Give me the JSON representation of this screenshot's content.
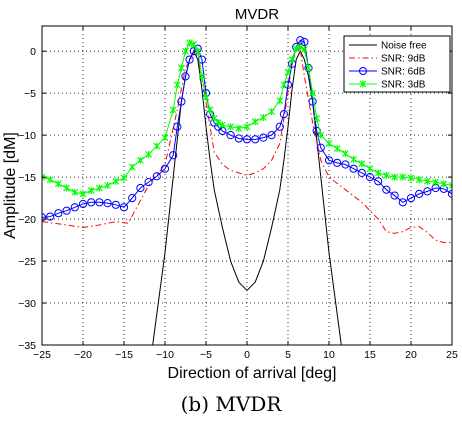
{
  "chart_data": {
    "type": "line",
    "title": "MVDR",
    "xlabel": "Direction of arrival [deg]",
    "ylabel": "Amplitude [dM]",
    "xlim": [
      -25,
      25
    ],
    "ylim": [
      -35,
      3
    ],
    "xticks": [
      -25,
      -20,
      -15,
      -10,
      -5,
      0,
      5,
      10,
      15,
      20,
      25
    ],
    "yticks": [
      0,
      -5,
      -10,
      -15,
      -20,
      -25,
      -30,
      -35
    ],
    "xtick_labels": [
      "−25",
      "−20",
      "−15",
      "−10",
      "−5",
      "0",
      "5",
      "10",
      "15",
      "20",
      "25"
    ],
    "ytick_labels": [
      "0",
      "−5",
      "−10",
      "−15",
      "−20",
      "−25",
      "−30",
      "−35"
    ],
    "grid": true,
    "legend_position": "top-right",
    "series": [
      {
        "name": "Noise free",
        "color": "#000000",
        "style": "solid",
        "marker": "none",
        "x": [
          -11.5,
          -10,
          -9,
          -8,
          -7.5,
          -7,
          -6.5,
          -6,
          -5.5,
          -5,
          -4.5,
          -4,
          -3,
          -2,
          -1,
          0,
          1,
          2,
          3,
          4,
          4.5,
          5,
          5.5,
          6,
          6.5,
          7,
          7.5,
          8,
          9,
          10,
          11.5
        ],
        "y": [
          -35,
          -24,
          -15,
          -6,
          -3,
          -1,
          0,
          -1,
          -4.5,
          -9,
          -13,
          -16.5,
          -21,
          -25,
          -27.5,
          -28.5,
          -27.5,
          -25,
          -21,
          -16.5,
          -13,
          -9,
          -4.5,
          -1,
          0,
          -1,
          -3,
          -6,
          -15,
          -24,
          -35
        ]
      },
      {
        "name": "SNR: 9dB",
        "color": "#ff0000",
        "style": "dashdot",
        "marker": "none",
        "x": [
          -25,
          -22,
          -20,
          -18,
          -16,
          -14.5,
          -12,
          -10,
          -8.5,
          -7.5,
          -6.5,
          -6,
          -5,
          -4,
          -3,
          -2,
          -1,
          0,
          1,
          2,
          3,
          4,
          5,
          5.5,
          6,
          6.5,
          7,
          8,
          9,
          10,
          12,
          14,
          16,
          17,
          18,
          19,
          20,
          21,
          22,
          23,
          24,
          25
        ],
        "y": [
          -20.3,
          -20.7,
          -21,
          -20.7,
          -20.3,
          -20.5,
          -16,
          -13.5,
          -7,
          -2,
          -0.3,
          -0.5,
          -6,
          -12,
          -13.5,
          -14.2,
          -14.5,
          -14.8,
          -14.5,
          -14,
          -13,
          -11,
          -5,
          -1,
          0.3,
          0.2,
          -3,
          -8.5,
          -13,
          -15,
          -16.5,
          -18,
          -20,
          -21.5,
          -21.7,
          -21.5,
          -21,
          -20.9,
          -21.6,
          -22.5,
          -22.8,
          -22.8
        ]
      },
      {
        "name": "SNR: 6dB",
        "color": "#0000ff",
        "style": "solid",
        "marker": "circle",
        "x": [
          -25,
          -24,
          -23,
          -22,
          -21,
          -20,
          -19,
          -18,
          -17,
          -16,
          -15,
          -14,
          -13,
          -12,
          -11,
          -10,
          -9,
          -8.5,
          -8,
          -7.5,
          -7,
          -6.5,
          -6,
          -5.5,
          -5,
          -4.5,
          -4,
          -3.5,
          -3,
          -2,
          -1,
          0,
          1,
          2,
          3,
          4,
          4.5,
          5,
          5.5,
          6,
          6.5,
          7,
          7.5,
          8,
          8.5,
          9,
          10,
          11,
          12,
          13,
          14,
          15,
          16,
          17,
          18,
          19,
          20,
          21,
          22,
          23,
          24,
          25
        ],
        "y": [
          -19.8,
          -19.7,
          -19.3,
          -19,
          -18.6,
          -18.2,
          -18,
          -18,
          -18.1,
          -18.3,
          -18.6,
          -17.5,
          -16.3,
          -15.6,
          -14.9,
          -14,
          -12.4,
          -9,
          -6,
          -3,
          -1,
          0,
          0.3,
          -1,
          -5,
          -7.5,
          -8.5,
          -9,
          -9.5,
          -10,
          -10.4,
          -10.5,
          -10.5,
          -10.3,
          -10,
          -9,
          -7.5,
          -4,
          -1.5,
          0.5,
          1.3,
          1.1,
          -2,
          -6,
          -9.5,
          -11.5,
          -13,
          -13.3,
          -13.5,
          -14,
          -14.5,
          -15,
          -15.5,
          -16.5,
          -17.2,
          -18,
          -17.5,
          -17,
          -16.7,
          -16.3,
          -16.4,
          -17
        ]
      },
      {
        "name": "SNR: 3dB",
        "color": "#00ff00",
        "style": "solid",
        "marker": "x",
        "x": [
          -25,
          -24,
          -23,
          -22,
          -21,
          -20,
          -19,
          -18,
          -17,
          -16,
          -15,
          -14,
          -13,
          -12,
          -11,
          -10,
          -9,
          -8.5,
          -8,
          -7.5,
          -7,
          -6.5,
          -6,
          -5.5,
          -5,
          -4.5,
          -4,
          -3.5,
          -3,
          -2,
          -1,
          0,
          1,
          2,
          3,
          4,
          4.5,
          5,
          5.5,
          6,
          6.5,
          7,
          7.5,
          8,
          8.5,
          9,
          10,
          11,
          12,
          13,
          14,
          15,
          16,
          17,
          18,
          19,
          20,
          21,
          22,
          23,
          24,
          25
        ],
        "y": [
          -15,
          -15.3,
          -15.8,
          -16.3,
          -16.8,
          -17,
          -16.6,
          -16.3,
          -16,
          -15.5,
          -15.1,
          -13.8,
          -13,
          -12.3,
          -11.3,
          -10.3,
          -7,
          -4,
          -2,
          0,
          1,
          0.8,
          0,
          -3,
          -5.5,
          -7,
          -8,
          -8.5,
          -8.8,
          -9,
          -9.2,
          -9,
          -8.4,
          -7.9,
          -7.2,
          -5.9,
          -4,
          -2.5,
          -1,
          0.3,
          0.5,
          0.2,
          -2,
          -5,
          -8,
          -10,
          -11,
          -11.6,
          -12.2,
          -12.9,
          -13.4,
          -14,
          -14.5,
          -14.8,
          -15,
          -15,
          -15.1,
          -15.3,
          -15.5,
          -15.6,
          -15.8,
          -16
        ]
      }
    ]
  },
  "caption": "(b) MVDR"
}
